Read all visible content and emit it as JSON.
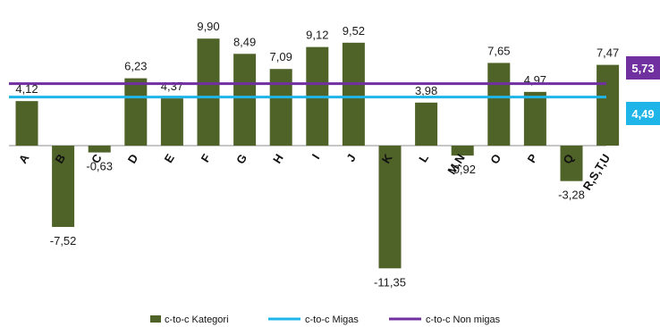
{
  "chart_data": {
    "type": "bar",
    "categories": [
      "A",
      "B",
      "C",
      "D",
      "E",
      "F",
      "G",
      "H",
      "I",
      "J",
      "K",
      "L",
      "M,N",
      "O",
      "P",
      "Q",
      "R,S,T,U"
    ],
    "series": [
      {
        "name": "c-to-c Kategori",
        "type": "bar",
        "color": "#4f6228",
        "values": [
          4.12,
          -7.52,
          -0.63,
          6.23,
          4.37,
          9.9,
          8.49,
          7.09,
          9.12,
          9.52,
          -11.35,
          3.98,
          -0.92,
          7.65,
          4.97,
          -3.28,
          7.47
        ]
      },
      {
        "name": "c-to-c Migas",
        "type": "line",
        "color": "#1fb5e8",
        "value": 4.49
      },
      {
        "name": "c-to-c Non migas",
        "type": "line",
        "color": "#7030a0",
        "value": 5.73
      }
    ],
    "data_labels": [
      "4,12",
      "-7,52",
      "-0,63",
      "6,23",
      "4,37",
      "9,90",
      "8,49",
      "7,09",
      "9,12",
      "9,52",
      "-11,35",
      "3,98",
      "-0,92",
      "7,65",
      "4,97",
      "-3,28",
      "7,47"
    ],
    "reference_labels": {
      "migas": "4,49",
      "nonmigas": "5,73"
    },
    "ylim": [
      -13,
      11
    ],
    "grid": false,
    "legend_position": "bottom"
  }
}
